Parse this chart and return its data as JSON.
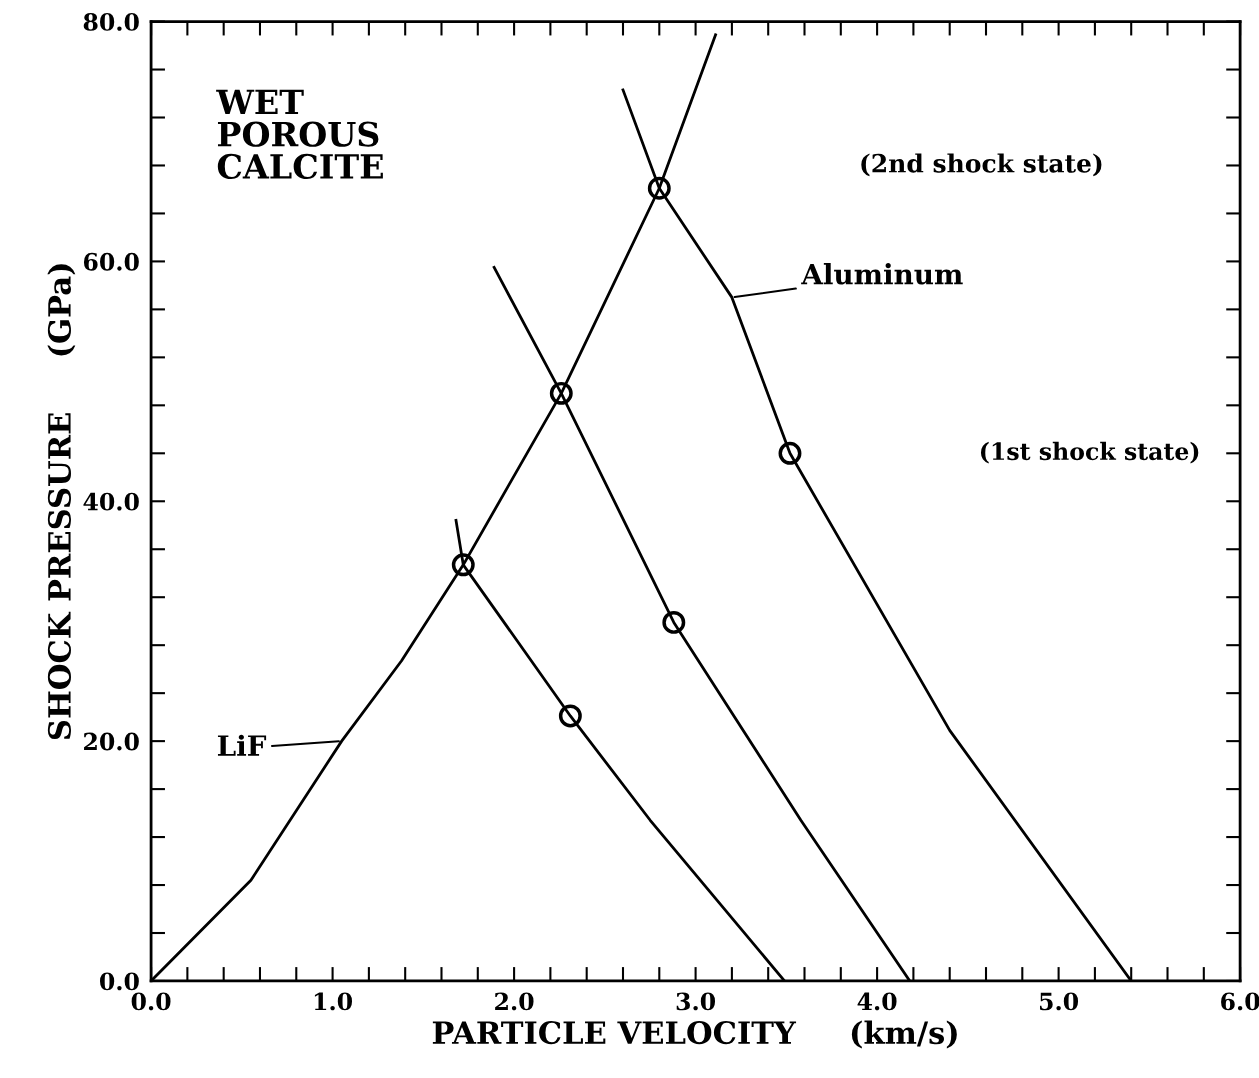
{
  "chart_data": {
    "type": "line",
    "xlabel": "PARTICLE VELOCITY     (km/s)",
    "ylabel": "SHOCK PRESSURE     (GPa)",
    "xlim": [
      0,
      6
    ],
    "ylim": [
      0,
      80
    ],
    "xticks": [
      {
        "value": 0,
        "label": "0.0"
      },
      {
        "value": 0.2,
        "label": null
      },
      {
        "value": 0.4,
        "label": null
      },
      {
        "value": 0.6,
        "label": null
      },
      {
        "value": 0.8,
        "label": null
      },
      {
        "value": 1,
        "label": "1.0"
      },
      {
        "value": 1.2,
        "label": null
      },
      {
        "value": 1.4,
        "label": null
      },
      {
        "value": 1.6,
        "label": null
      },
      {
        "value": 1.8,
        "label": null
      },
      {
        "value": 2,
        "label": "2.0"
      },
      {
        "value": 2.2,
        "label": null
      },
      {
        "value": 2.4,
        "label": null
      },
      {
        "value": 2.6,
        "label": null
      },
      {
        "value": 2.8,
        "label": null
      },
      {
        "value": 3,
        "label": "3.0"
      },
      {
        "value": 3.2,
        "label": null
      },
      {
        "value": 3.4,
        "label": null
      },
      {
        "value": 3.6,
        "label": null
      },
      {
        "value": 3.8,
        "label": null
      },
      {
        "value": 4,
        "label": "4.0"
      },
      {
        "value": 4.2,
        "label": null
      },
      {
        "value": 4.4,
        "label": null
      },
      {
        "value": 4.6,
        "label": null
      },
      {
        "value": 4.8,
        "label": null
      },
      {
        "value": 5,
        "label": "5.0"
      },
      {
        "value": 5.2,
        "label": null
      },
      {
        "value": 5.4,
        "label": null
      },
      {
        "value": 5.6,
        "label": null
      },
      {
        "value": 5.8,
        "label": null
      },
      {
        "value": 6,
        "label": "6.0"
      }
    ],
    "yticks": [
      {
        "value": 0,
        "label": "0.0"
      },
      {
        "value": 4,
        "label": null
      },
      {
        "value": 8,
        "label": null
      },
      {
        "value": 12,
        "label": null
      },
      {
        "value": 16,
        "label": null
      },
      {
        "value": 20,
        "label": "20.0"
      },
      {
        "value": 24,
        "label": null
      },
      {
        "value": 28,
        "label": null
      },
      {
        "value": 32,
        "label": null
      },
      {
        "value": 36,
        "label": null
      },
      {
        "value": 40,
        "label": "40.0"
      },
      {
        "value": 44,
        "label": null
      },
      {
        "value": 48,
        "label": null
      },
      {
        "value": 52,
        "label": null
      },
      {
        "value": 56,
        "label": null
      },
      {
        "value": 60,
        "label": "60.0"
      },
      {
        "value": 64,
        "label": null
      },
      {
        "value": 68,
        "label": null
      },
      {
        "value": 72,
        "label": null
      },
      {
        "value": 76,
        "label": null
      },
      {
        "value": 80,
        "label": "80.0"
      }
    ],
    "grid": false,
    "legend": false,
    "marker": "none",
    "line_style": "solid",
    "series": [
      {
        "color": "#000000",
        "x": [
          0,
          0.55,
          1.05,
          1.38,
          1.72,
          2.26,
          2.8,
          3.11
        ],
        "values": [
          0,
          8.4,
          20,
          26.7,
          34.7,
          49,
          66.1,
          78.9
        ]
      },
      {
        "color": "#000000",
        "x": [
          1.68,
          1.72,
          2.31,
          2.75,
          3.49
        ],
        "values": [
          38.4,
          34.7,
          22.1,
          13.4,
          0
        ]
      },
      {
        "color": "#000000",
        "x": [
          1.89,
          2.26,
          2.88,
          3.58,
          4.18
        ],
        "values": [
          59.5,
          49,
          29.9,
          13.4,
          0
        ]
      },
      {
        "color": "#000000",
        "x": [
          2.6,
          2.8,
          3.2,
          3.52,
          4.4,
          5.4
        ],
        "values": [
          74.3,
          66.1,
          57,
          44,
          20.9,
          0
        ]
      },
      {
        "type": "scatter",
        "marker": "circle",
        "color": "#000000",
        "x": [
          1.72,
          2.31,
          2.26,
          2.88,
          2.8,
          3.52
        ],
        "values": [
          34.7,
          22.1,
          49,
          29.9,
          66.1,
          44
        ]
      }
    ],
    "annotations": [
      "WET\nPOROUS\nCALCITE",
      "(2nd shock state)",
      "(1st shock state)",
      {
        "text": "Aluminum",
        "x": 3.2,
        "y": 57
      },
      {
        "text": "LiF",
        "x": 1.05,
        "y": 20
      }
    ]
  }
}
